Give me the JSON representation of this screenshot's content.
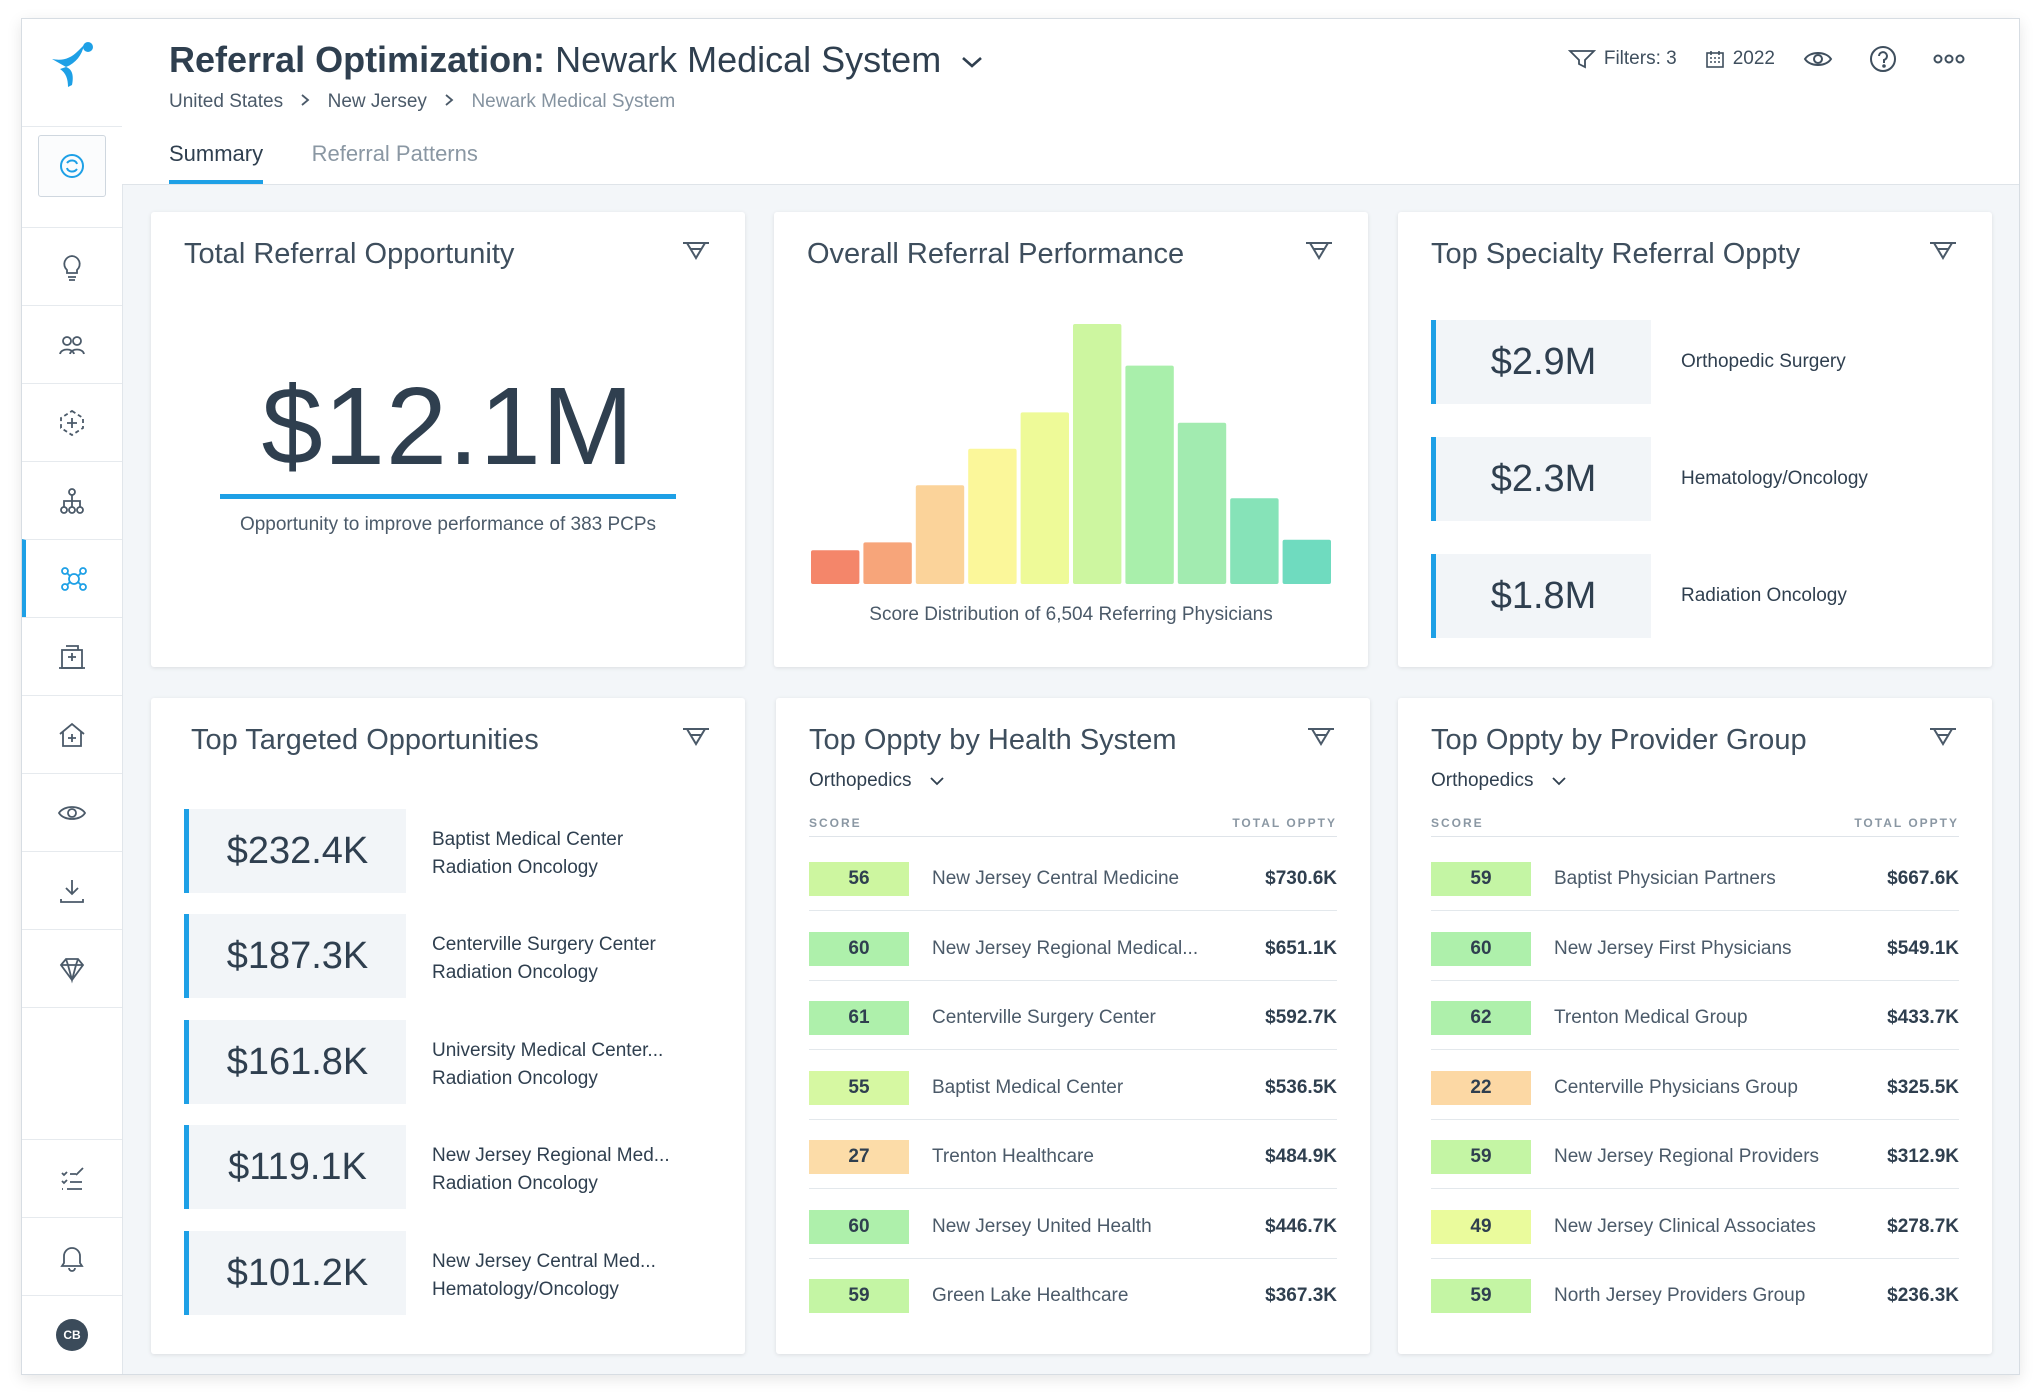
{
  "header": {
    "title_bold": "Referral Optimization:",
    "title_system": "Newark Medical System",
    "breadcrumb": [
      "United States",
      "New Jersey",
      "Newark Medical System"
    ],
    "tabs": [
      {
        "label": "Summary"
      },
      {
        "label": "Referral Patterns"
      }
    ],
    "filters_label": "Filters: 3",
    "year_label": "2022"
  },
  "user": {
    "initials": "CB"
  },
  "total_opportunity": {
    "title": "Total Referral Opportunity",
    "value": "$12.1M",
    "caption": "Opportunity to improve performance of 383 PCPs"
  },
  "performance": {
    "title": "Overall Referral Performance",
    "caption": "Score Distribution of 6,504 Referring Physicians"
  },
  "chart_data": {
    "type": "bar",
    "title": "Overall Referral Performance",
    "xlabel": "",
    "ylabel": "",
    "values": [
      13,
      16,
      38,
      52,
      66,
      100,
      84,
      62,
      33,
      17
    ],
    "colors": [
      "#f4866a",
      "#f7a57a",
      "#fbd39a",
      "#fbf79a",
      "#eefa98",
      "#cdf6a0",
      "#a9efab",
      "#a2ebb0",
      "#86e3b8",
      "#6fdbbf"
    ]
  },
  "top_specialty": {
    "title": "Top Specialty Referral Oppty",
    "items": [
      {
        "value": "$2.9M",
        "label": "Orthopedic Surgery"
      },
      {
        "value": "$2.3M",
        "label": "Hematology/Oncology"
      },
      {
        "value": "$1.8M",
        "label": "Radiation Oncology"
      }
    ]
  },
  "targeted": {
    "title": "Top Targeted Opportunities",
    "items": [
      {
        "value": "$232.4K",
        "line1": "Baptist Medical Center",
        "line2": "Radiation Oncology"
      },
      {
        "value": "$187.3K",
        "line1": "Centerville Surgery Center",
        "line2": "Radiation Oncology"
      },
      {
        "value": "$161.8K",
        "line1": "University Medical Center...",
        "line2": "Radiation Oncology"
      },
      {
        "value": "$119.1K",
        "line1": "New Jersey Regional Med...",
        "line2": "Radiation Oncology"
      },
      {
        "value": "$101.2K",
        "line1": "New Jersey Central Med...",
        "line2": "Hematology/Oncology"
      }
    ]
  },
  "health_system": {
    "title": "Top Oppty by Health System",
    "filter": "Orthopedics",
    "col_score": "SCORE",
    "col_total": "TOTAL OPPTY",
    "rows": [
      {
        "score": "56",
        "color": "#cdf6a0",
        "name": "New Jersey Central Medicine",
        "value": "$730.6K"
      },
      {
        "score": "60",
        "color": "#aef0ab",
        "name": "New Jersey Regional Medical...",
        "value": "$651.1K"
      },
      {
        "score": "61",
        "color": "#aef0ab",
        "name": "Centerville Surgery Center",
        "value": "$592.7K"
      },
      {
        "score": "55",
        "color": "#d6f8a2",
        "name": "Baptist Medical Center",
        "value": "$536.5K"
      },
      {
        "score": "27",
        "color": "#fcdca8",
        "name": "Trenton Healthcare",
        "value": "$484.9K"
      },
      {
        "score": "60",
        "color": "#aef0ab",
        "name": "New Jersey United Health",
        "value": "$446.7K"
      },
      {
        "score": "59",
        "color": "#c4f5a4",
        "name": "Green Lake Healthcare",
        "value": "$367.3K"
      }
    ]
  },
  "provider_group": {
    "title": "Top Oppty by Provider Group",
    "filter": "Orthopedics",
    "col_score": "SCORE",
    "col_total": "TOTAL OPPTY",
    "rows": [
      {
        "score": "59",
        "color": "#c4f5a4",
        "name": "Baptist Physician Partners",
        "value": "$667.6K"
      },
      {
        "score": "60",
        "color": "#aef0ab",
        "name": "New Jersey First Physicians",
        "value": "$549.1K"
      },
      {
        "score": "62",
        "color": "#aef0ab",
        "name": "Trenton Medical Group",
        "value": "$433.7K"
      },
      {
        "score": "22",
        "color": "#fcd8a4",
        "name": "Centerville Physicians Group",
        "value": "$325.5K"
      },
      {
        "score": "59",
        "color": "#c4f5a4",
        "name": "New Jersey Regional Providers",
        "value": "$312.9K"
      },
      {
        "score": "49",
        "color": "#eafb9c",
        "name": "New Jersey Clinical Associates",
        "value": "$278.7K"
      },
      {
        "score": "59",
        "color": "#c4f5a4",
        "name": "North Jersey Providers Group",
        "value": "$236.3K"
      }
    ]
  }
}
